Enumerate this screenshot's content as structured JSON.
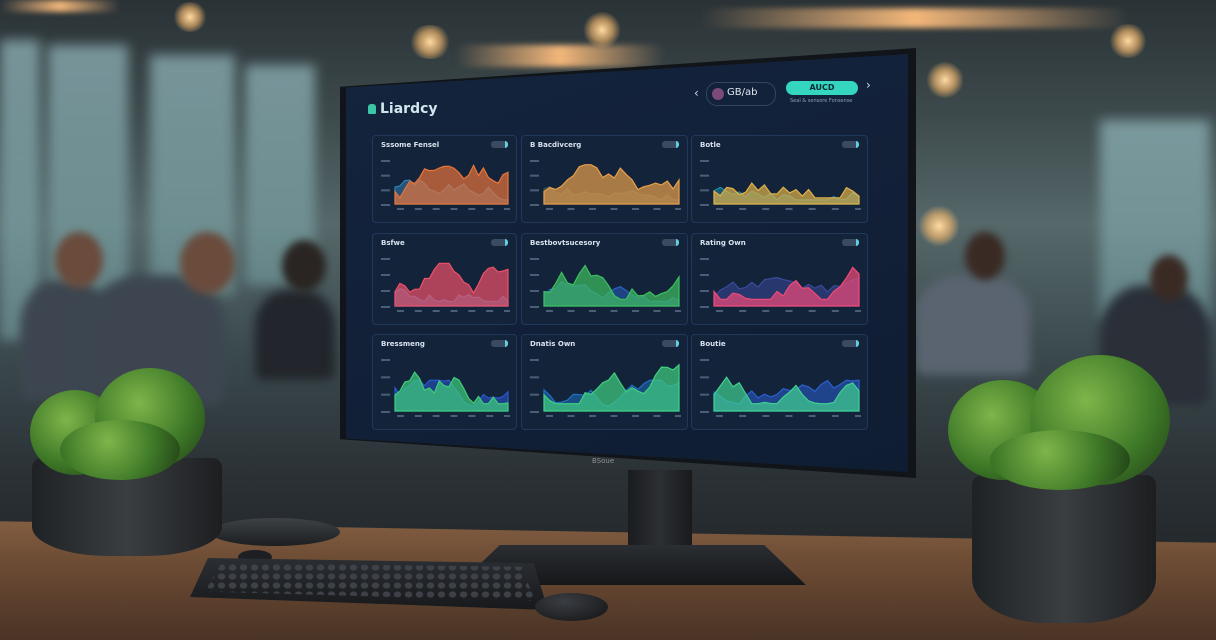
{
  "scene": "office-desk-monitor",
  "dashboard": {
    "brand": "Liardcy",
    "nav_prev": "‹",
    "nav_next": "›",
    "account_pill": "GB/ab",
    "accent_button": "AUCD",
    "accent_subtext": "Seal & sensore Fonsense",
    "colors": {
      "background": "#14243d",
      "accent": "#34d6c0",
      "card": "#13233a"
    },
    "cards": [
      {
        "title": "Sssome Fensel",
        "series_colors": [
          "#e8743a",
          "#2f7fb0"
        ]
      },
      {
        "title": "B Bacdivcerg",
        "series_colors": [
          "#e8a04a",
          "#3b4f5e"
        ]
      },
      {
        "title": "Botle",
        "series_colors": [
          "#e0b048",
          "#1f8aa0"
        ]
      },
      {
        "title": "Bsfwe",
        "series_colors": [
          "#f0506a",
          "#2a8ac0"
        ]
      },
      {
        "title": "Bestbovtsucesory",
        "series_colors": [
          "#3ec060",
          "#2a60c0"
        ]
      },
      {
        "title": "Rating Own",
        "series_colors": [
          "#f04a78",
          "#3a4a9a"
        ]
      },
      {
        "title": "Bressmeng",
        "series_colors": [
          "#3ecf7a",
          "#2a5ad0"
        ]
      },
      {
        "title": "Dnatis Own",
        "series_colors": [
          "#40d080",
          "#1f70c0"
        ]
      },
      {
        "title": "Boutie",
        "series_colors": [
          "#40d090",
          "#2a60d0"
        ]
      }
    ]
  },
  "monitor_logo": "BSoue"
}
